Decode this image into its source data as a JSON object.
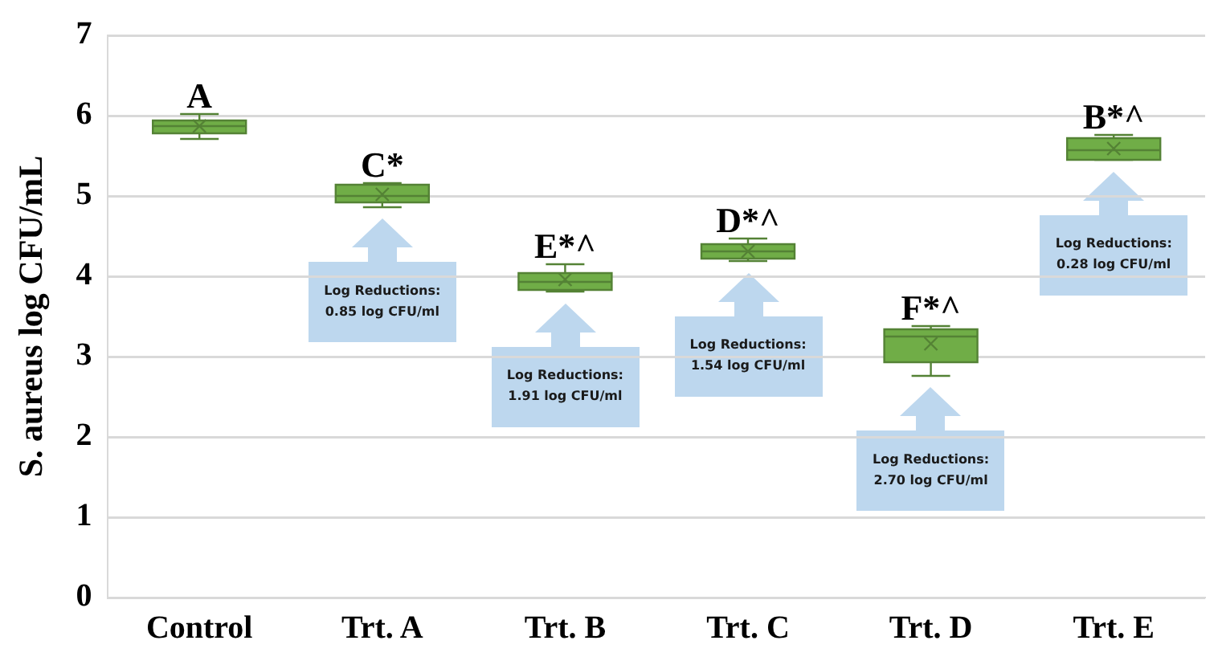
{
  "chart_data": {
    "type": "box",
    "ylabel": "S. aureus log CFU/mL",
    "categories": [
      "Control",
      "Trt. A",
      "Trt. B",
      "Trt. C",
      "Trt. D",
      "Trt. E"
    ],
    "color": "#70ad47",
    "boxes": [
      {
        "low": 5.71,
        "q1": 5.78,
        "median": 5.87,
        "q3": 5.94,
        "high": 6.02,
        "mean": 5.87
      },
      {
        "low": 4.86,
        "q1": 4.92,
        "median": 5.0,
        "q3": 5.14,
        "high": 5.16,
        "mean": 5.02
      },
      {
        "low": 3.81,
        "q1": 3.83,
        "median": 3.93,
        "q3": 4.04,
        "high": 4.15,
        "mean": 3.96
      },
      {
        "low": 4.19,
        "q1": 4.22,
        "median": 4.31,
        "q3": 4.4,
        "high": 4.47,
        "mean": 4.31
      },
      {
        "low": 2.76,
        "q1": 2.93,
        "median": 3.25,
        "q3": 3.34,
        "high": 3.38,
        "mean": 3.16
      },
      {
        "low": 5.45,
        "q1": 5.45,
        "median": 5.57,
        "q3": 5.72,
        "high": 5.76,
        "mean": 5.59
      }
    ],
    "ylim": [
      0,
      7
    ],
    "yticks": [
      0,
      1,
      2,
      3,
      4,
      5,
      6,
      7
    ],
    "grid": "y",
    "legend": false,
    "annotations": [
      {
        "text": "A",
        "x": "Control",
        "y": 6.02
      },
      {
        "text": "C*",
        "x": "Trt. A",
        "y": 5.16
      },
      {
        "text": "E*^",
        "x": "Trt. B",
        "y": 4.15
      },
      {
        "text": "D*^",
        "x": "Trt. C",
        "y": 4.47
      },
      {
        "text": "F*^",
        "x": "Trt. D",
        "y": 3.38
      },
      {
        "text": "B*^",
        "x": "Trt. E",
        "y": 5.76
      },
      "Log Reductions:\n0.85 log CFU/ml",
      "Log Reductions:\n1.91 log CFU/ml",
      "Log Reductions:\n1.54 log CFU/ml",
      "Log Reductions:\n2.70 log CFU/ml",
      "Log Reductions:\n0.28 log CFU/ml"
    ]
  }
}
